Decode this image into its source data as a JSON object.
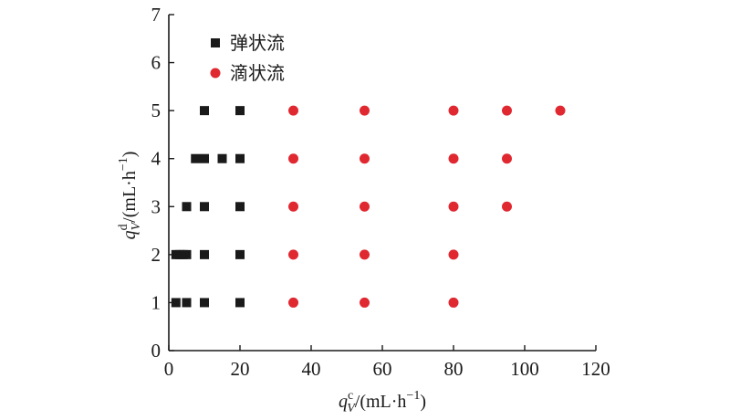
{
  "chart_data": {
    "type": "scatter",
    "xlabel": {
      "var": "q",
      "sup": "c",
      "sub": "V",
      "unit": "/(mL·h",
      "unit_sup": "−1",
      "close": ")"
    },
    "ylabel": {
      "var": "q",
      "sup": "d",
      "sub": "V",
      "unit": "/(mL·h",
      "unit_sup": "−1",
      "close": ")"
    },
    "xlim": [
      0,
      120
    ],
    "ylim": [
      0,
      7
    ],
    "xticks": [
      0,
      20,
      40,
      60,
      80,
      100,
      120
    ],
    "yticks": [
      0,
      1,
      2,
      3,
      4,
      5,
      6,
      7
    ],
    "grid": false,
    "legend_position": "top-left",
    "series": [
      {
        "name": "弹状流",
        "marker": "square",
        "color": "#1a1a1a",
        "points": [
          [
            2,
            1
          ],
          [
            5,
            1
          ],
          [
            10,
            1
          ],
          [
            20,
            1
          ],
          [
            2,
            2
          ],
          [
            3,
            2
          ],
          [
            4,
            2
          ],
          [
            5,
            2
          ],
          [
            10,
            2
          ],
          [
            20,
            2
          ],
          [
            5,
            3
          ],
          [
            10,
            3
          ],
          [
            20,
            3
          ],
          [
            7.5,
            4
          ],
          [
            10,
            4
          ],
          [
            15,
            4
          ],
          [
            20,
            4
          ],
          [
            10,
            5
          ],
          [
            20,
            5
          ]
        ]
      },
      {
        "name": "滴状流",
        "marker": "circle",
        "color": "#e02830",
        "points": [
          [
            35,
            1
          ],
          [
            55,
            1
          ],
          [
            80,
            1
          ],
          [
            35,
            2
          ],
          [
            55,
            2
          ],
          [
            80,
            2
          ],
          [
            35,
            3
          ],
          [
            55,
            3
          ],
          [
            80,
            3
          ],
          [
            95,
            3
          ],
          [
            35,
            4
          ],
          [
            55,
            4
          ],
          [
            80,
            4
          ],
          [
            95,
            4
          ],
          [
            35,
            5
          ],
          [
            55,
            5
          ],
          [
            80,
            5
          ],
          [
            95,
            5
          ],
          [
            110,
            5
          ]
        ]
      }
    ]
  }
}
